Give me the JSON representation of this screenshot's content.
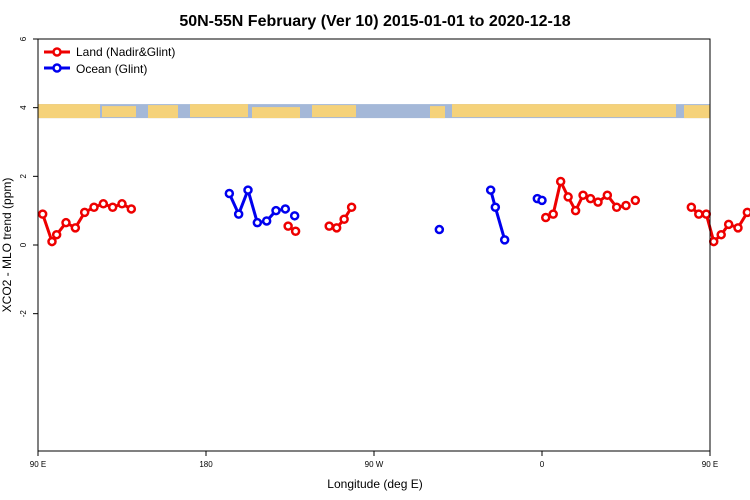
{
  "chart_data": {
    "type": "line",
    "title": "50N-55N February (Ver 10)   2015-01-01 to 2020-12-18",
    "xlabel": "Longitude (deg E)",
    "ylabel": "XCO2 - MLO trend (ppm)",
    "xlim": [
      90,
      450
    ],
    "ylim": [
      -6,
      6
    ],
    "x_ticks": [
      {
        "value": 90,
        "label": "90 E"
      },
      {
        "value": 180,
        "label": "180"
      },
      {
        "value": 270,
        "label": "90 W"
      },
      {
        "value": 360,
        "label": "0"
      },
      {
        "value": 450,
        "label": "90 E"
      },
      {
        "value": 540,
        "label": "180"
      }
    ],
    "y_ticks": [
      {
        "value": -2,
        "label": "-2"
      },
      {
        "value": 0,
        "label": "0"
      },
      {
        "value": 2,
        "label": "2"
      },
      {
        "value": 4,
        "label": "4"
      },
      {
        "value": 6,
        "label": "6"
      }
    ],
    "legend_position": "top-left",
    "land_ocean_strip": {
      "y": 3.9,
      "land_color": "#f5d27a",
      "ocean_color": "#a4b8d8"
    },
    "series": [
      {
        "name": "Land (Nadir&Glint)",
        "color": "#ee0000",
        "segments": [
          [
            [
              92.5,
              0.9
            ],
            [
              97.5,
              0.1
            ],
            [
              100,
              0.3
            ],
            [
              105,
              0.65
            ],
            [
              110,
              0.5
            ],
            [
              115,
              0.95
            ],
            [
              120,
              1.1
            ],
            [
              125,
              1.2
            ],
            [
              130,
              1.1
            ],
            [
              135,
              1.2
            ],
            [
              140,
              1.05
            ]
          ],
          [
            [
              224,
              0.55
            ],
            [
              228,
              0.4
            ]
          ],
          [
            [
              246,
              0.55
            ],
            [
              250,
              0.5
            ],
            [
              254,
              0.75
            ],
            [
              258,
              1.1
            ]
          ],
          [
            [
              362,
              0.8
            ],
            [
              366,
              0.9
            ],
            [
              370,
              1.85
            ],
            [
              374,
              1.4
            ],
            [
              378,
              1.0
            ],
            [
              382,
              1.45
            ],
            [
              386,
              1.35
            ],
            [
              390,
              1.25
            ],
            [
              395,
              1.45
            ],
            [
              400,
              1.1
            ],
            [
              405,
              1.15
            ]
          ],
          [
            [
              410,
              1.3
            ]
          ],
          [
            [
              440,
              1.1
            ],
            [
              444,
              0.9
            ],
            [
              448,
              0.9
            ],
            [
              452,
              0.1
            ],
            [
              456,
              0.3
            ],
            [
              460,
              0.6
            ],
            [
              465,
              0.5
            ],
            [
              470,
              0.95
            ],
            [
              475,
              1.1
            ],
            [
              480,
              1.2
            ],
            [
              485,
              1.1
            ],
            [
              490,
              1.2
            ],
            [
              495,
              1.05
            ]
          ]
        ]
      },
      {
        "name": "Ocean (Glint)",
        "color": "#0000ee",
        "segments": [
          [
            [
              192.5,
              1.5
            ],
            [
              197.5,
              0.9
            ],
            [
              202.5,
              1.6
            ],
            [
              207.5,
              0.65
            ],
            [
              212.5,
              0.7
            ],
            [
              217.5,
              1.0
            ],
            [
              222.5,
              1.05
            ]
          ],
          [
            [
              227.5,
              0.85
            ]
          ],
          [
            [
              305,
              0.45
            ]
          ],
          [
            [
              332.5,
              1.6
            ],
            [
              335,
              1.1
            ],
            [
              340,
              0.15
            ]
          ],
          [
            [
              357.5,
              1.35
            ],
            [
              360,
              1.3
            ]
          ]
        ]
      }
    ]
  }
}
